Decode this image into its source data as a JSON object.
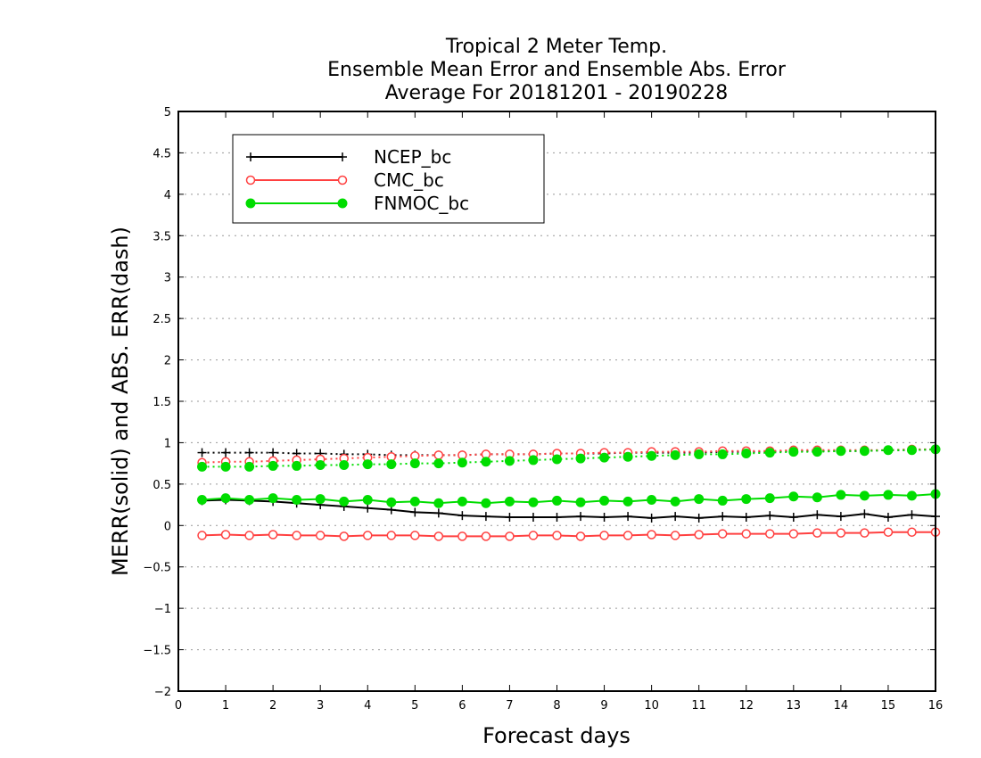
{
  "chart_data": {
    "type": "line",
    "title_lines": [
      "Tropical 2 Meter Temp.",
      "Ensemble Mean Error and Ensemble Abs. Error",
      "Average For 20181201 - 20190228"
    ],
    "xlabel": "Forecast days",
    "ylabel": "MERR(solid) and ABS. ERR(dash)",
    "xlim": [
      0,
      16
    ],
    "ylim": [
      -2,
      5
    ],
    "x_ticks": [
      "0",
      "1",
      "2",
      "3",
      "4",
      "5",
      "6",
      "7",
      "8",
      "9",
      "10",
      "11",
      "12",
      "13",
      "14",
      "15",
      "16"
    ],
    "y_ticks": [
      "−2",
      "−1.5",
      "−1",
      "−0.5",
      "0",
      "0.5",
      "1",
      "1.5",
      "2",
      "2.5",
      "3",
      "3.5",
      "4",
      "4.5",
      "5"
    ],
    "y_tick_values": [
      -2,
      -1.5,
      -1,
      -0.5,
      0,
      0.5,
      1,
      1.5,
      2,
      2.5,
      3,
      3.5,
      4,
      4.5,
      5
    ],
    "grid": "horizontal dotted",
    "legend_position": "top-left",
    "x": [
      0.5,
      1,
      1.5,
      2,
      2.5,
      3,
      3.5,
      4,
      4.5,
      5,
      5.5,
      6,
      6.5,
      7,
      7.5,
      8,
      8.5,
      9,
      9.5,
      10,
      10.5,
      11,
      11.5,
      12,
      12.5,
      13,
      13.5,
      14,
      14.5,
      15,
      15.5,
      16
    ],
    "series": [
      {
        "name": "NCEP_bc",
        "color": "#000000",
        "marker": "plus",
        "mean_error": [
          0.3,
          0.31,
          0.3,
          0.29,
          0.27,
          0.25,
          0.23,
          0.21,
          0.19,
          0.16,
          0.15,
          0.12,
          0.11,
          0.1,
          0.1,
          0.1,
          0.11,
          0.1,
          0.11,
          0.09,
          0.11,
          0.09,
          0.11,
          0.1,
          0.12,
          0.1,
          0.13,
          0.11,
          0.14,
          0.1,
          0.13,
          0.11
        ],
        "abs_error": [
          0.88,
          0.88,
          0.88,
          0.88,
          0.87,
          0.87,
          0.86,
          0.86,
          0.85,
          0.85,
          0.85,
          0.85,
          0.86,
          0.86,
          0.86,
          0.87,
          0.87,
          0.87,
          0.88,
          0.88,
          0.88,
          0.88,
          0.89,
          0.89,
          0.89,
          0.9,
          0.9,
          0.9,
          0.9,
          0.91,
          0.91,
          0.92
        ]
      },
      {
        "name": "CMC_bc",
        "color": "#ff4040",
        "marker": "open-circle",
        "mean_error": [
          -0.12,
          -0.11,
          -0.12,
          -0.11,
          -0.12,
          -0.12,
          -0.13,
          -0.12,
          -0.12,
          -0.12,
          -0.13,
          -0.13,
          -0.13,
          -0.13,
          -0.12,
          -0.12,
          -0.13,
          -0.12,
          -0.12,
          -0.11,
          -0.12,
          -0.11,
          -0.1,
          -0.1,
          -0.1,
          -0.1,
          -0.09,
          -0.09,
          -0.09,
          -0.08,
          -0.08,
          -0.08
        ],
        "abs_error": [
          0.76,
          0.77,
          0.77,
          0.78,
          0.79,
          0.8,
          0.81,
          0.82,
          0.83,
          0.84,
          0.85,
          0.85,
          0.86,
          0.86,
          0.86,
          0.87,
          0.87,
          0.88,
          0.88,
          0.89,
          0.89,
          0.89,
          0.9,
          0.9,
          0.9,
          0.91,
          0.91,
          0.91,
          0.91,
          0.91,
          0.92,
          0.92
        ]
      },
      {
        "name": "FNMOC_bc",
        "color": "#00dd00",
        "marker": "filled-circle",
        "mean_error": [
          0.31,
          0.33,
          0.31,
          0.33,
          0.31,
          0.32,
          0.29,
          0.31,
          0.28,
          0.29,
          0.27,
          0.29,
          0.27,
          0.29,
          0.28,
          0.3,
          0.28,
          0.3,
          0.29,
          0.31,
          0.29,
          0.32,
          0.3,
          0.32,
          0.33,
          0.35,
          0.34,
          0.37,
          0.36,
          0.37,
          0.36,
          0.38
        ],
        "abs_error": [
          0.71,
          0.71,
          0.71,
          0.72,
          0.72,
          0.73,
          0.73,
          0.74,
          0.74,
          0.75,
          0.75,
          0.76,
          0.77,
          0.78,
          0.79,
          0.8,
          0.81,
          0.82,
          0.83,
          0.84,
          0.85,
          0.86,
          0.86,
          0.87,
          0.88,
          0.89,
          0.89,
          0.9,
          0.9,
          0.91,
          0.91,
          0.92
        ]
      }
    ]
  }
}
